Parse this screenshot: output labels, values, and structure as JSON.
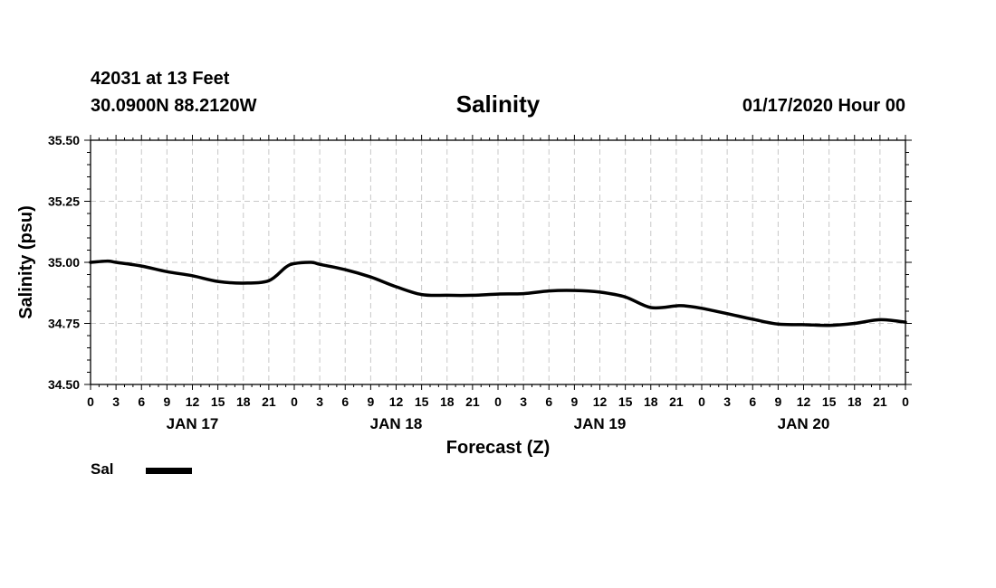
{
  "header": {
    "station_line1": "42031 at 13 Feet",
    "station_line2": "30.0900N 88.2120W",
    "title": "Salinity",
    "run_time": "01/17/2020 Hour 00"
  },
  "legend": {
    "series_label": "Sal"
  },
  "chart_data": {
    "type": "line",
    "title": "Salinity",
    "xlabel": "Forecast (Z)",
    "ylabel": "Salinity (psu)",
    "xlim": [
      0,
      96
    ],
    "ylim": [
      34.5,
      35.5
    ],
    "grid": true,
    "legend_position": "bottom-left",
    "y_ticks": [
      "34.50",
      "34.75",
      "35.00",
      "35.25",
      "35.50"
    ],
    "x_tick_labels": [
      "0",
      "3",
      "6",
      "9",
      "12",
      "15",
      "18",
      "21",
      "0",
      "3",
      "6",
      "9",
      "12",
      "15",
      "18",
      "21",
      "0",
      "3",
      "6",
      "9",
      "12",
      "15",
      "18",
      "21",
      "0",
      "3",
      "6",
      "9",
      "12",
      "15",
      "18",
      "21",
      "0"
    ],
    "day_labels": [
      {
        "label": "JAN 17",
        "center_hour": 12
      },
      {
        "label": "JAN 18",
        "center_hour": 36
      },
      {
        "label": "JAN 19",
        "center_hour": 60
      },
      {
        "label": "JAN 20",
        "center_hour": 84
      }
    ],
    "series": [
      {
        "name": "Sal",
        "color": "#000000",
        "x": [
          0,
          2,
          3,
          6,
          9,
          12,
          15,
          18,
          21,
          23,
          24,
          26,
          27,
          30,
          33,
          36,
          39,
          42,
          45,
          48,
          51,
          54,
          57,
          60,
          63,
          66,
          69,
          70,
          72,
          75,
          78,
          81,
          84,
          87,
          90,
          93,
          96
        ],
        "values": [
          35.0,
          35.005,
          35.0,
          34.985,
          34.962,
          34.945,
          34.922,
          34.915,
          34.925,
          34.98,
          34.995,
          35.0,
          34.992,
          34.97,
          34.94,
          34.9,
          34.868,
          34.865,
          34.865,
          34.87,
          34.872,
          34.883,
          34.885,
          34.878,
          34.858,
          34.815,
          34.822,
          34.822,
          34.812,
          34.79,
          34.767,
          34.747,
          34.745,
          34.742,
          34.75,
          34.765,
          34.755
        ]
      }
    ]
  }
}
